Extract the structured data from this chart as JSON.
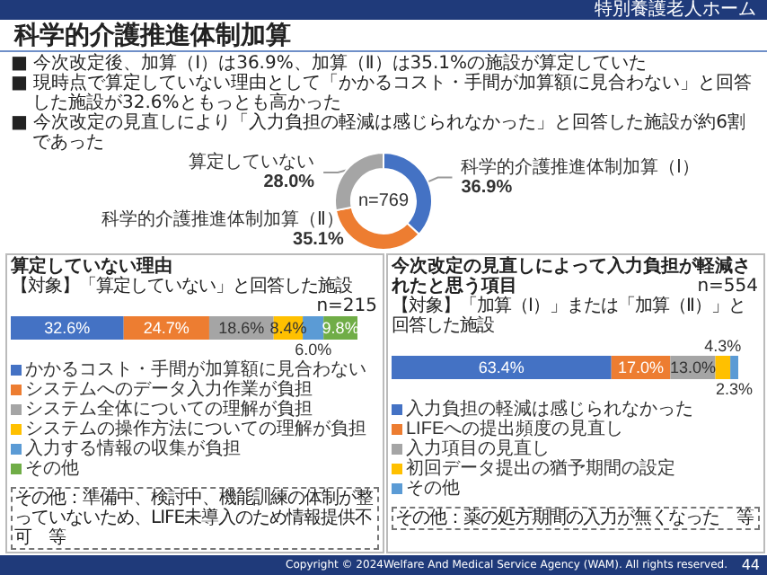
{
  "chart_data": [
    {
      "type": "donut",
      "title": "科学的介護推進体制加算",
      "annotations": [
        "特別養護老人ホーム",
        "■ 今次改定後、加算（Ⅰ）は36.9%、加算（Ⅱ）は35.1%の施設が算定していた",
        "■ 現時点で算定していない理由として「かかるコスト・手間が加算額に見合わない」と回答した施設が32.6%ともっとも高かった",
        "■ 今次改定の見直しにより「入力負担の軽減は感じられなかった」と回答した施設が約6割であった",
        "n=769"
      ],
      "categories": [
        "科学的介護推進体制加算（Ⅰ）",
        "科学的介護推進体制加算（Ⅱ）",
        "算定していない"
      ],
      "values": [
        36.9,
        35.1,
        28.0
      ],
      "colors": [
        "#4472c4",
        "#ed7d31",
        "#a5a5a5"
      ],
      "value_labels": [
        "36.9%",
        "35.1%",
        "28.0%"
      ]
    },
    {
      "type": "bar",
      "orientation": "horizontal",
      "stacked": true,
      "title": "算定していない理由",
      "subtitle": "【対象】「算定していない」と回答した施設",
      "annotations": [
        "n=215",
        "その他：準備中、検討中、機能訓練の体制が整っていないため、LIFE未導入のため情報提供不可　等"
      ],
      "categories": [
        null
      ],
      "legend": "bottom left",
      "series": [
        {
          "name": "かかるコスト・手間が加算額に見合わない",
          "color": "#4472c4",
          "values": [
            32.6
          ],
          "value_labels": [
            "32.6%"
          ]
        },
        {
          "name": "システムへのデータ入力作業が負担",
          "color": "#ed7d31",
          "values": [
            24.7
          ],
          "value_labels": [
            "24.7%"
          ]
        },
        {
          "name": "システム全体についての理解が負担",
          "color": "#a5a5a5",
          "values": [
            18.6
          ],
          "value_labels": [
            "18.6%"
          ]
        },
        {
          "name": "システムの操作方法についての理解が負担",
          "color": "#ffc000",
          "values": [
            8.4
          ],
          "value_labels": [
            "8.4%"
          ]
        },
        {
          "name": "入力する情報の収集が負担",
          "color": "#5b9bd5",
          "values": [
            6.0
          ],
          "value_labels": [
            "6.0%"
          ]
        },
        {
          "name": "その他",
          "color": "#70ad47",
          "values": [
            9.8
          ],
          "value_labels": [
            "9.8%"
          ]
        }
      ]
    },
    {
      "type": "bar",
      "orientation": "horizontal",
      "stacked": true,
      "title": "今次改定の見直しによって入力負担が軽減されたと思う項目",
      "subtitle": "【対象】「加算（Ⅰ）」または「加算（Ⅱ）」と回答した施設",
      "annotations": [
        "n=554",
        "その他：薬の処方期間の入力が無くなった　等",
        "Copyright © 2024Welfare And Medical Service Agency (WAM). All rights reserved.",
        "44"
      ],
      "categories": [
        null
      ],
      "legend": "bottom left",
      "series": [
        {
          "name": "入力負担の軽減は感じられなかった",
          "color": "#4472c4",
          "values": [
            63.4
          ],
          "value_labels": [
            "63.4%"
          ]
        },
        {
          "name": "LIFEへの提出頻度の見直し",
          "color": "#ed7d31",
          "values": [
            17.0
          ],
          "value_labels": [
            "17.0%"
          ]
        },
        {
          "name": "入力項目の見直し",
          "color": "#a5a5a5",
          "values": [
            13.0
          ],
          "value_labels": [
            "13.0%"
          ]
        },
        {
          "name": "初回データ提出の猶予期間の設定",
          "color": "#ffc000",
          "values": [
            4.3
          ],
          "value_labels": [
            "4.3%"
          ]
        },
        {
          "name": "その他",
          "color": "#5b9bd5",
          "values": [
            2.3
          ],
          "value_labels": [
            "2.3%"
          ]
        }
      ]
    }
  ]
}
